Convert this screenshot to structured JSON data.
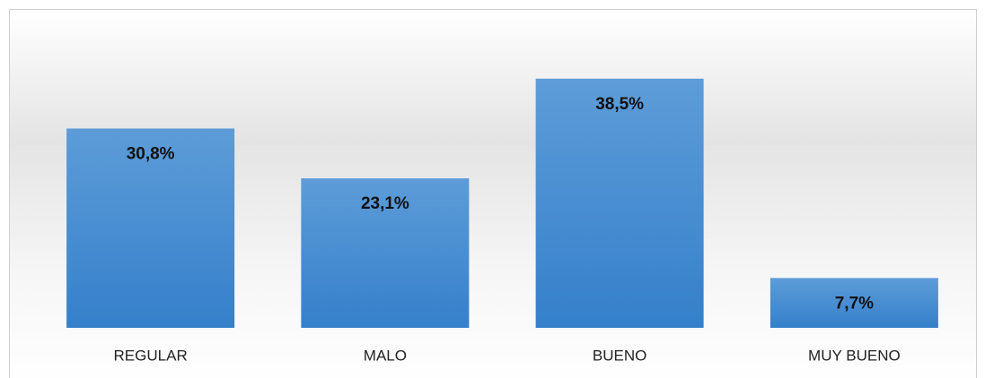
{
  "chart_data": {
    "type": "bar",
    "categories": [
      "REGULAR",
      "MALO",
      "BUENO",
      "MUY BUENO"
    ],
    "values": [
      30.8,
      23.1,
      38.5,
      7.7
    ],
    "value_labels": [
      "30,8%",
      "23,1%",
      "38,5%",
      "7,7%"
    ],
    "color": "#4a8fd3",
    "ylim": [
      0,
      40
    ]
  }
}
